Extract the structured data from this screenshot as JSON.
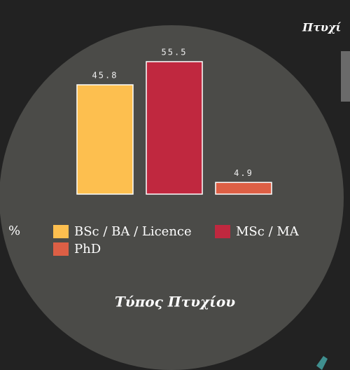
{
  "clipped_title": "Πτυχί",
  "chart_data": {
    "type": "bar",
    "categories": [
      "BSc / BA / Licence",
      "MSc / MA",
      "PhD"
    ],
    "values": [
      45.8,
      55.5,
      4.9
    ],
    "colors": [
      "#fdbf4f",
      "#c0283f",
      "#dd5f45"
    ],
    "ylabel": "%",
    "xlabel": "Τύπος Πτυχίου",
    "legend": true
  }
}
